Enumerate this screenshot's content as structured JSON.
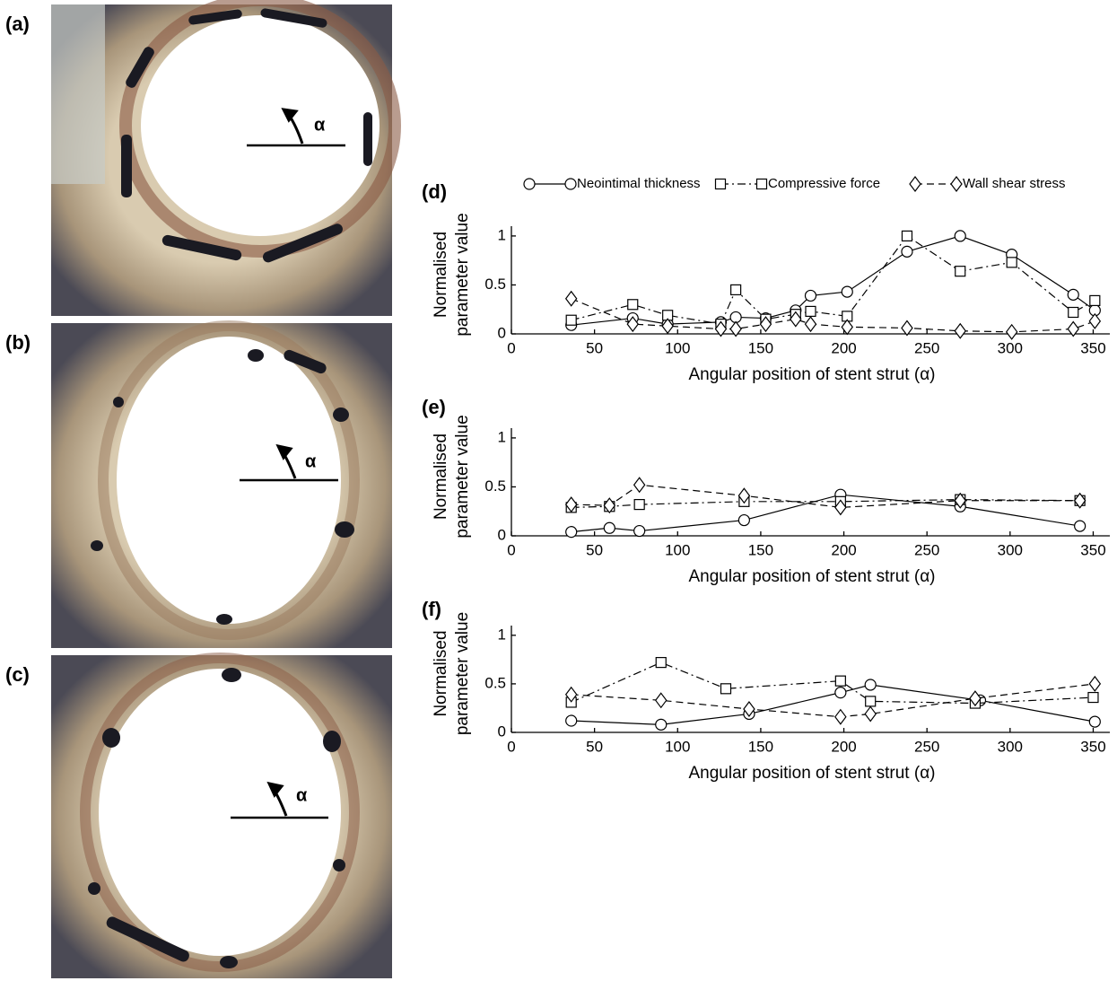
{
  "image_panels": [
    {
      "label": "(a)",
      "angle_symbol": "α"
    },
    {
      "label": "(b)",
      "angle_symbol": "α"
    },
    {
      "label": "(c)",
      "angle_symbol": "α"
    }
  ],
  "chart_data": [
    {
      "type": "line",
      "label": "(d)",
      "xlabel": "Angular position of stent strut (α)",
      "ylabel": [
        "Normalised",
        "parameter value"
      ],
      "xlim": [
        0,
        360
      ],
      "xticks": [
        0,
        50,
        100,
        150,
        200,
        250,
        300,
        350
      ],
      "ylim": [
        0,
        1.1
      ],
      "yticks": [
        0,
        0.5,
        1
      ],
      "series": [
        {
          "name": "Neointimal thickness",
          "color": "#000000",
          "marker": "circle",
          "linestyle": "solid",
          "x": [
            36,
            73,
            94,
            126,
            135,
            153,
            171,
            180,
            202,
            238,
            270,
            301,
            338,
            351
          ],
          "values": [
            0.09,
            0.16,
            0.1,
            0.12,
            0.17,
            0.16,
            0.24,
            0.39,
            0.43,
            0.84,
            1.0,
            0.81,
            0.4,
            0.24
          ]
        },
        {
          "name": "Compressive force",
          "color": "#000000",
          "marker": "square",
          "linestyle": "dashdot",
          "x": [
            36,
            73,
            94,
            126,
            135,
            153,
            171,
            180,
            202,
            238,
            270,
            301,
            338,
            351
          ],
          "values": [
            0.14,
            0.3,
            0.19,
            0.1,
            0.45,
            0.15,
            0.2,
            0.23,
            0.18,
            1.0,
            0.64,
            0.73,
            0.22,
            0.34
          ]
        },
        {
          "name": "Wall shear stress",
          "color": "#000000",
          "marker": "diamond",
          "linestyle": "dashed",
          "x": [
            36,
            73,
            94,
            126,
            135,
            153,
            171,
            180,
            202,
            238,
            270,
            301,
            338,
            351
          ],
          "values": [
            0.36,
            0.1,
            0.08,
            0.05,
            0.05,
            0.1,
            0.15,
            0.1,
            0.07,
            0.06,
            0.03,
            0.02,
            0.05,
            0.13
          ]
        }
      ]
    },
    {
      "type": "line",
      "label": "(e)",
      "xlabel": "Angular position of stent strut (α)",
      "ylabel": [
        "Normalised",
        "parameter value"
      ],
      "xlim": [
        0,
        360
      ],
      "xticks": [
        0,
        50,
        100,
        150,
        200,
        250,
        300,
        350
      ],
      "ylim": [
        0,
        1.1
      ],
      "yticks": [
        0,
        0.5,
        1
      ],
      "series": [
        {
          "color": "#000000",
          "marker": "circle",
          "linestyle": "solid",
          "x": [
            36,
            59,
            77,
            140,
            198,
            270,
            342
          ],
          "values": [
            0.04,
            0.08,
            0.05,
            0.16,
            0.42,
            0.3,
            0.1
          ]
        },
        {
          "color": "#000000",
          "marker": "square",
          "linestyle": "dashdot",
          "x": [
            36,
            59,
            77,
            140,
            198,
            270,
            342
          ],
          "values": [
            0.29,
            0.3,
            0.32,
            0.35,
            0.35,
            0.37,
            0.36
          ]
        },
        {
          "color": "#000000",
          "marker": "diamond",
          "linestyle": "dashed",
          "x": [
            36,
            59,
            77,
            140,
            198,
            270,
            342
          ],
          "values": [
            0.32,
            0.31,
            0.52,
            0.41,
            0.29,
            0.36,
            0.36
          ]
        }
      ]
    },
    {
      "type": "line",
      "label": "(f)",
      "xlabel": "Angular position of stent strut (α)",
      "ylabel": [
        "Normalised",
        "parameter value"
      ],
      "xlim": [
        0,
        360
      ],
      "xticks": [
        0,
        50,
        100,
        150,
        200,
        250,
        300,
        350
      ],
      "ylim": [
        0,
        1.1
      ],
      "yticks": [
        0,
        0.5,
        1
      ],
      "series": [
        {
          "color": "#000000",
          "marker": "circle",
          "linestyle": "solid",
          "x": [
            36,
            90,
            143,
            198,
            216,
            282,
            351
          ],
          "values": [
            0.12,
            0.08,
            0.19,
            0.41,
            0.49,
            0.33,
            0.11
          ]
        },
        {
          "color": "#000000",
          "marker": "square",
          "linestyle": "dashdot",
          "x": [
            36,
            90,
            129,
            198,
            216,
            279,
            350
          ],
          "values": [
            0.31,
            0.72,
            0.45,
            0.53,
            0.32,
            0.3,
            0.36
          ]
        },
        {
          "color": "#000000",
          "marker": "diamond",
          "linestyle": "dashed",
          "x": [
            36,
            90,
            143,
            198,
            216,
            279,
            351
          ],
          "values": [
            0.39,
            0.33,
            0.24,
            0.16,
            0.19,
            0.35,
            0.5
          ]
        }
      ]
    }
  ]
}
